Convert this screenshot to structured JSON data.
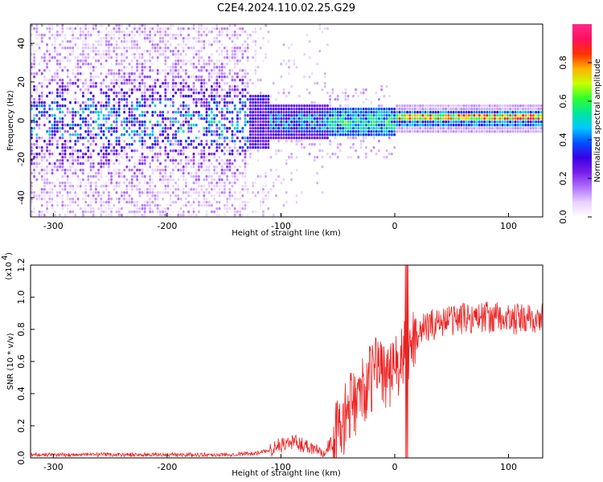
{
  "title": "C2E4.2024.110.02.25.G29",
  "chart_data": [
    {
      "type": "heatmap",
      "xlabel": "Height of straight line (km)",
      "ylabel": "Frequency (Hz)",
      "xlim": [
        -320,
        130
      ],
      "ylim": [
        -50,
        50
      ],
      "x_ticks": [
        -300,
        -200,
        -100,
        0,
        100
      ],
      "y_ticks": [
        -40,
        -20,
        0,
        20,
        40
      ],
      "colorbar": {
        "label": "Normalized spectral amplitude",
        "range": [
          0,
          1
        ],
        "ticks": [
          "0.0",
          "0.2",
          "0.4",
          "0.6",
          "0.8"
        ],
        "colors": [
          "#ffffff",
          "#e6d0ff",
          "#b070ff",
          "#7a1ee8",
          "#3a00e6",
          "#0050ff",
          "#00c8ff",
          "#00e69a",
          "#30ff30",
          "#c8ff00",
          "#ffb000",
          "#ff3000",
          "#ff1060",
          "#ff2a8a"
        ]
      },
      "features": [
        {
          "region": "x -320 to -130",
          "frequency_spread_hz": [
            -50,
            50
          ],
          "amplitude": "0.0–0.3 (scattered)"
        },
        {
          "region": "x -130 to -60",
          "frequency_spread_hz": [
            -15,
            15
          ],
          "amplitude": "0.2–0.5"
        },
        {
          "region": "x -60 to 0",
          "center_hz": 0,
          "amplitude": "0.3–0.7"
        },
        {
          "region": "x 0 to 130",
          "center_hz": 2,
          "amplitude": "0.5–0.9 (narrow line)"
        }
      ]
    },
    {
      "type": "line",
      "xlabel": "Height of straight line (km)",
      "ylabel": "SNR (10 * v/v)",
      "exponent_label": "(x10",
      "exponent_power": "4",
      "xlim": [
        -320,
        130
      ],
      "ylim": [
        0,
        1.2
      ],
      "x_ticks": [
        -300,
        -200,
        -100,
        0,
        100
      ],
      "y_ticks": [
        "0.0",
        "0.2",
        "0.4",
        "0.6",
        "0.8",
        "1.0",
        "1.2"
      ],
      "color": "#ee2020",
      "series": [
        {
          "x": [
            -320,
            -300,
            -250,
            -200,
            -150,
            -120,
            -110,
            -100,
            -90,
            -80,
            -70,
            -60,
            -50,
            -40,
            -30,
            -20,
            -15,
            -10,
            -5,
            0,
            5,
            10,
            20,
            30,
            40,
            60,
            80,
            100,
            120,
            130
          ],
          "values": [
            0.02,
            0.02,
            0.02,
            0.02,
            0.02,
            0.03,
            0.05,
            0.08,
            0.1,
            0.08,
            0.06,
            0.05,
            0.15,
            0.3,
            0.4,
            0.5,
            0.6,
            0.55,
            0.5,
            0.55,
            0.6,
            0.65,
            0.78,
            0.82,
            0.85,
            0.87,
            0.88,
            0.86,
            0.86,
            0.87
          ]
        }
      ]
    }
  ]
}
